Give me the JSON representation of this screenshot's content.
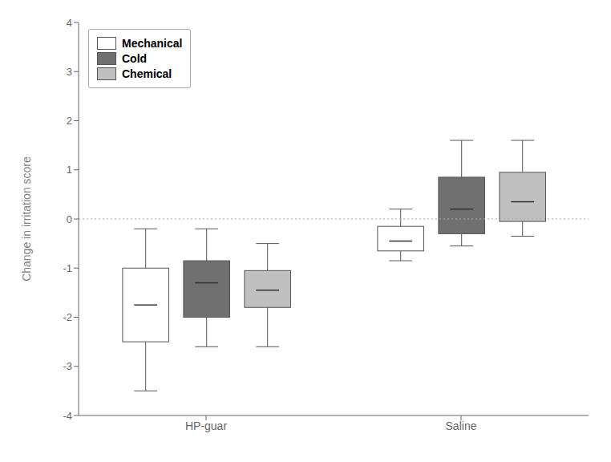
{
  "chart_data": {
    "type": "box",
    "categories": [
      "HP-guar",
      "Saline"
    ],
    "ylabel": "Change in irritation score",
    "ylim": [
      -4,
      4
    ],
    "yticks": [
      -4,
      -3,
      -2,
      -1,
      0,
      1,
      2,
      3,
      4
    ],
    "hline": 0,
    "grid": false,
    "legend": "upper left",
    "series": [
      {
        "name": "Mechanical",
        "color": "#ffffff",
        "whislo": [
          -3.5,
          -0.85
        ],
        "q1": [
          -2.5,
          -0.65
        ],
        "q3": [
          -1.0,
          -0.15
        ],
        "whishi": [
          -0.2,
          0.2
        ],
        "mean": [
          -1.75,
          -0.45
        ]
      },
      {
        "name": "Cold",
        "color": "#707070",
        "whislo": [
          -2.6,
          -0.55
        ],
        "q1": [
          -2.0,
          -0.3
        ],
        "q3": [
          -0.85,
          0.85
        ],
        "whishi": [
          -0.2,
          1.6
        ],
        "mean": [
          -1.3,
          0.2
        ]
      },
      {
        "name": "Chemical",
        "color": "#c0c0c0",
        "whislo": [
          -2.6,
          -0.35
        ],
        "q1": [
          -1.8,
          -0.05
        ],
        "q3": [
          -1.05,
          0.95
        ],
        "whishi": [
          -0.5,
          1.6
        ],
        "mean": [
          -1.45,
          0.35
        ]
      }
    ]
  }
}
